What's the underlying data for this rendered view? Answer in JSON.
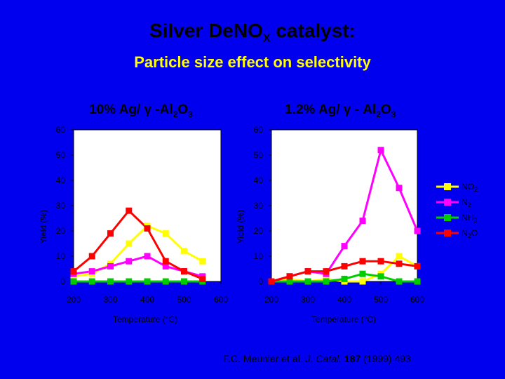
{
  "title": {
    "main": "Silver DeNO",
    "sub": "X",
    "rest": " catalyst:"
  },
  "subtitle": "Particle size effect on selectivity",
  "citation": {
    "authors": "F.C. Meunier et al. ",
    "journal": "J. Catal.",
    "volume": "187",
    "rest": " (1999) 493"
  },
  "colors": {
    "background": "#0000ee",
    "NO2": "#ffff00",
    "N2": "#ff00ff",
    "NH3": "#00cc00",
    "N2O": "#ff0000"
  },
  "chart_data": [
    {
      "type": "line",
      "title": {
        "pre": "10% Ag/ γ -Al",
        "sub1": "2",
        "mid": "O",
        "sub2": "3"
      },
      "xlabel": "Temperature (°C)",
      "ylabel": "Yield (%)",
      "xlim": [
        200,
        600
      ],
      "ylim": [
        0,
        60
      ],
      "xticks": [
        "200",
        "300",
        "400",
        "500",
        "600"
      ],
      "yticks": [
        "0",
        "10",
        "20",
        "30",
        "40",
        "50",
        "60"
      ],
      "series": [
        {
          "name": "NO2",
          "x": [
            200,
            250,
            300,
            350,
            400,
            450,
            500,
            550
          ],
          "y": [
            2,
            3,
            7,
            15,
            22,
            19,
            12,
            8
          ]
        },
        {
          "name": "N2",
          "x": [
            200,
            250,
            300,
            350,
            400,
            450,
            500,
            550
          ],
          "y": [
            3,
            4,
            6,
            8,
            10,
            6,
            4,
            2
          ]
        },
        {
          "name": "NH3",
          "x": [
            200,
            250,
            300,
            350,
            400,
            450,
            500,
            550
          ],
          "y": [
            0,
            0,
            0,
            0,
            0,
            0,
            0,
            0
          ]
        },
        {
          "name": "N2O",
          "x": [
            200,
            250,
            300,
            350,
            400,
            450,
            500,
            550
          ],
          "y": [
            4,
            10,
            19,
            28,
            21,
            8,
            4,
            1
          ]
        }
      ]
    },
    {
      "type": "line",
      "title": {
        "pre": "1.2% Ag/ γ - Al",
        "sub1": "2",
        "mid": "O",
        "sub2": "3"
      },
      "xlabel": "Temperature (°C)",
      "ylabel": "Yield (%)",
      "xlim": [
        200,
        600
      ],
      "ylim": [
        0,
        60
      ],
      "xticks": [
        "200",
        "300",
        "400",
        "500",
        "600"
      ],
      "yticks": [
        "0",
        "10",
        "20",
        "30",
        "40",
        "50",
        "60"
      ],
      "series": [
        {
          "name": "NO2",
          "x": [
            200,
            250,
            300,
            350,
            400,
            450,
            500,
            550,
            600
          ],
          "y": [
            0,
            1,
            0,
            1,
            0,
            0,
            3,
            10,
            6
          ]
        },
        {
          "name": "N2",
          "x": [
            200,
            250,
            300,
            350,
            400,
            450,
            500,
            550,
            600
          ],
          "y": [
            0,
            2,
            4,
            3,
            14,
            24,
            52,
            37,
            20
          ]
        },
        {
          "name": "NH3",
          "x": [
            200,
            250,
            300,
            350,
            400,
            450,
            500,
            550,
            600
          ],
          "y": [
            0,
            0,
            0,
            0,
            1,
            3,
            2,
            0,
            0
          ]
        },
        {
          "name": "N2O",
          "x": [
            200,
            250,
            300,
            350,
            400,
            450,
            500,
            550,
            600
          ],
          "y": [
            0,
            2,
            4,
            4,
            6,
            8,
            8,
            7,
            6
          ]
        }
      ]
    }
  ],
  "legend": [
    {
      "key": "NO2",
      "base": "NO",
      "sub": "2"
    },
    {
      "key": "N2",
      "base": "N",
      "sub": "2"
    },
    {
      "key": "NH3",
      "base": "NH",
      "sub": "3"
    },
    {
      "key": "N2O",
      "base": "N",
      "sub": "2",
      "tail": "O"
    }
  ]
}
